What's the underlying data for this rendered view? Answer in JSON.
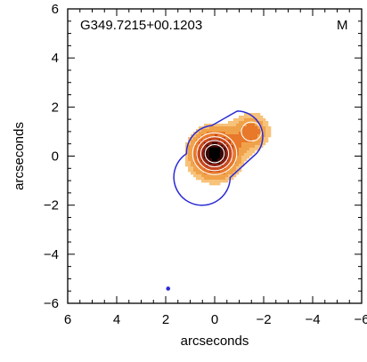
{
  "chart_data": {
    "type": "heatmap",
    "title": "G349.7215+00.1203",
    "corner_label": "M",
    "xlabel": "arcseconds",
    "ylabel": "arcseconds",
    "xlim": [
      6,
      -6
    ],
    "ylim": [
      -6,
      6
    ],
    "xticks": [
      6,
      4,
      2,
      0,
      -2,
      -4,
      -6
    ],
    "yticks": [
      6,
      4,
      2,
      0,
      -2,
      -4,
      -6
    ],
    "xtick_labels": [
      "6",
      "4",
      "2",
      "0",
      "−2",
      "−4",
      "−6"
    ],
    "ytick_labels": [
      "6",
      "4",
      "2",
      "0",
      "−2",
      "−4",
      "−6"
    ],
    "grid": false,
    "sources": [
      {
        "x": 0.0,
        "y": 0.1,
        "peak": 1.0,
        "sigma": 0.62
      },
      {
        "x": -1.5,
        "y": 1.0,
        "peak": 0.42,
        "sigma": 0.5
      }
    ],
    "beam_marker": {
      "x": 1.9,
      "y": -5.4
    },
    "colors": {
      "frame": "#000000",
      "outer_contour": "#2b2bd6",
      "inner_contours": "#ffffff",
      "levels": [
        "#f7c27a",
        "#f0a24a",
        "#e8782a",
        "#c9491c",
        "#8a1f10",
        "#3a0805",
        "#000000"
      ]
    }
  }
}
